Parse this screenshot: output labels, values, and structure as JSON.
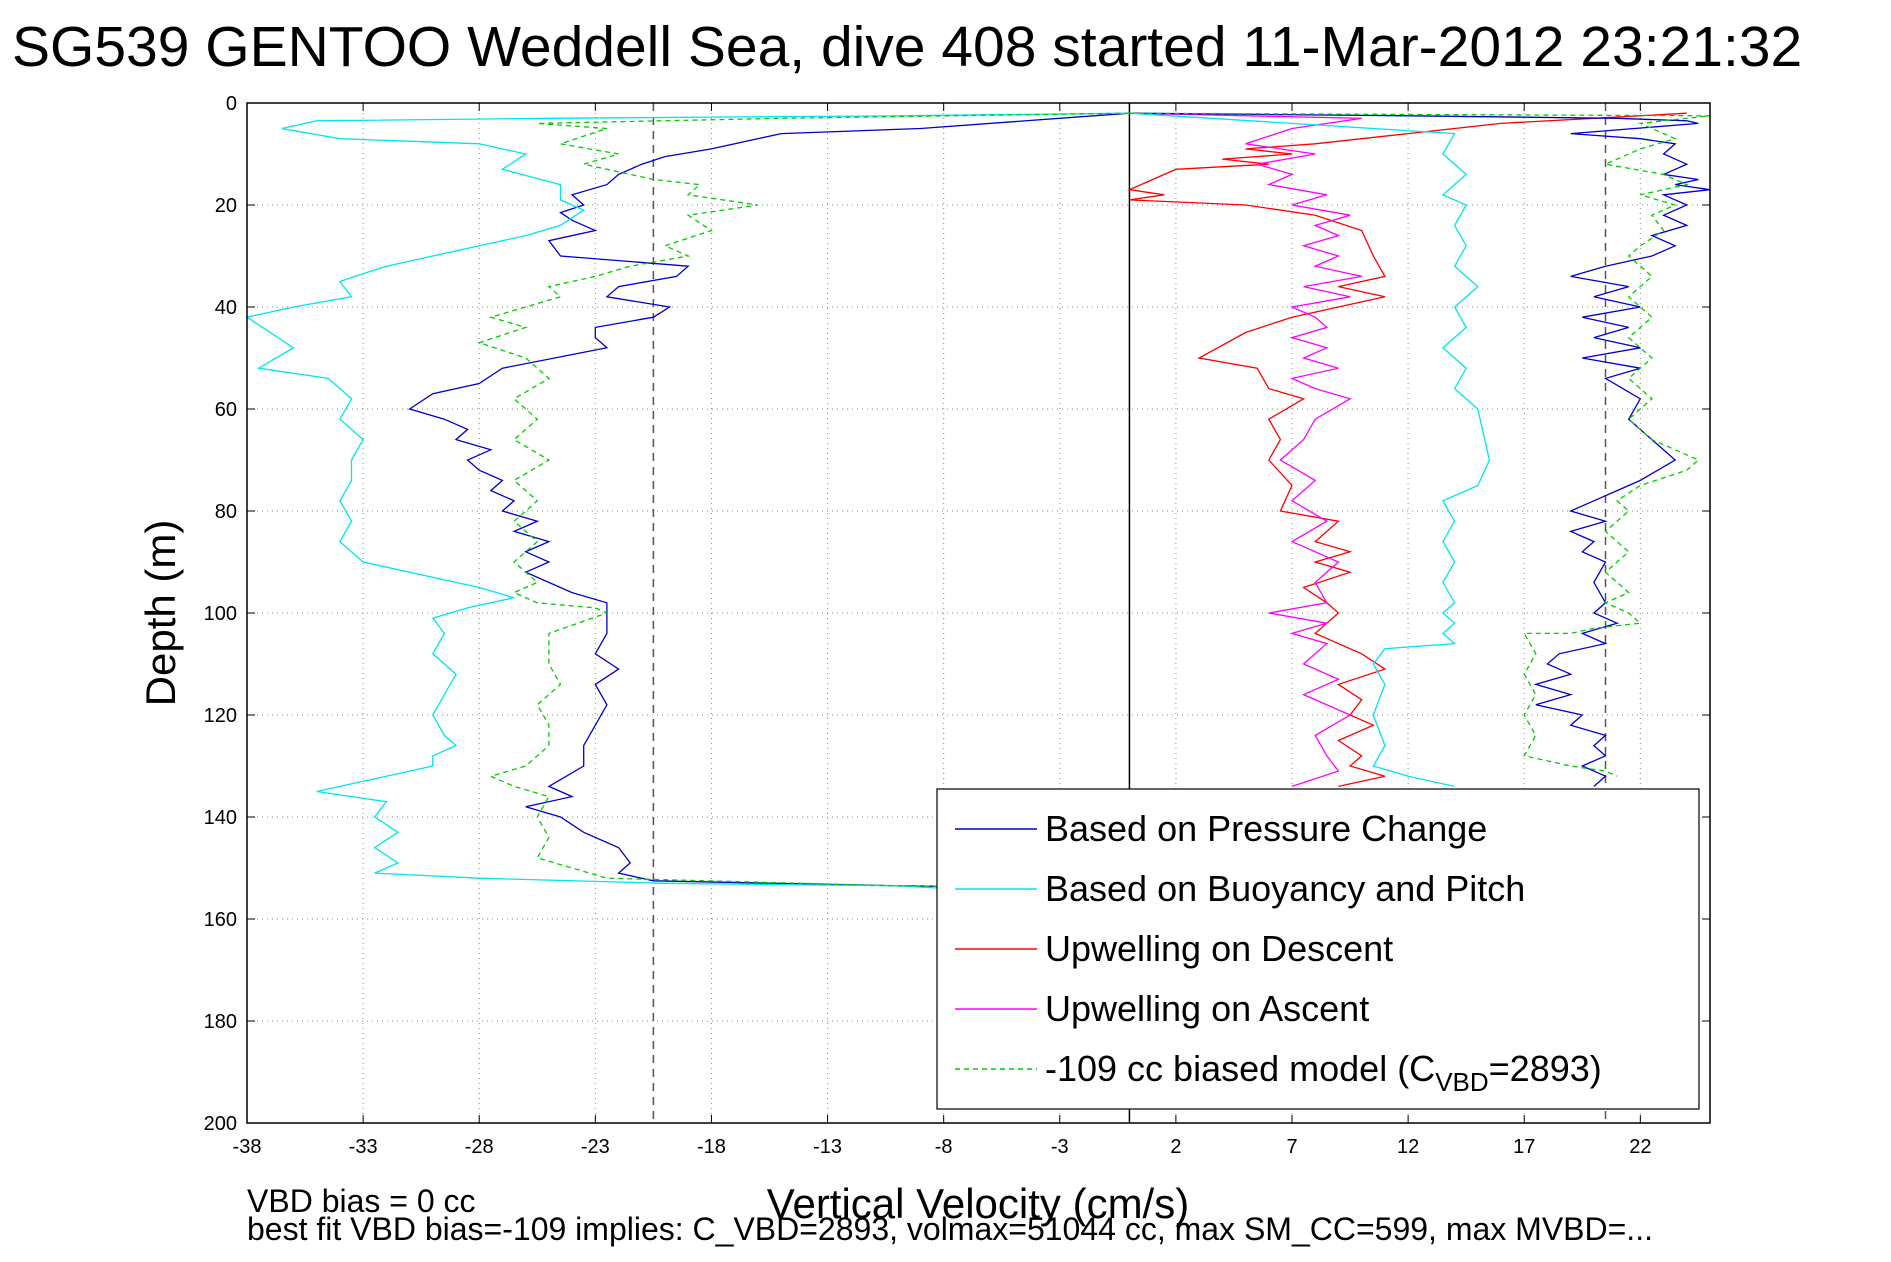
{
  "title": "SG539 GENTOO Weddell Sea, dive 408 started 11-Mar-2012 23:21:32",
  "footer": {
    "line1": "VBD bias = 0 cc",
    "line2": "best fit VBD bias=-109 implies: C_VBD=2893, volmax=51044 cc, max SM_CC=599, max MVBD=..."
  },
  "chart_data": {
    "type": "line",
    "title": "SG539 GENTOO Weddell Sea, dive 408 started 11-Mar-2012 23:21:32",
    "xlabel": "Vertical Velocity (cm/s)",
    "ylabel": "Depth (m)",
    "xlim": [
      -38,
      25
    ],
    "ylim": [
      200,
      0
    ],
    "y_reversed": true,
    "xticks": [
      -38,
      -33,
      -28,
      -23,
      -18,
      -13,
      -8,
      -3,
      2,
      7,
      12,
      17,
      22
    ],
    "yticks": [
      0,
      20,
      40,
      60,
      80,
      100,
      120,
      140,
      160,
      180,
      200
    ],
    "grid": true,
    "legend_position": "lower-right",
    "vertical_lines": [
      {
        "x": -20.5,
        "style": "dashed",
        "color": "#555555"
      },
      {
        "x": 0,
        "style": "solid",
        "color": "#000000"
      },
      {
        "x": 20.5,
        "style": "dashed",
        "color": "#555555"
      }
    ],
    "legend": [
      {
        "label": "Based on Pressure Change",
        "color": "#0000cc",
        "dash": false
      },
      {
        "label": "Based on Buoyancy and Pitch",
        "color": "#00e5ee",
        "dash": false
      },
      {
        "label": "Upwelling on Descent",
        "color": "#ff0000",
        "dash": false
      },
      {
        "label": "Upwelling on Ascent",
        "color": "#ff00ff",
        "dash": false
      },
      {
        "label": "-109 cc biased model (C",
        "label_sub": "VBD",
        "label_tail": "=2893)",
        "color": "#00cc00",
        "dash": true
      }
    ],
    "series": [
      {
        "name": "Based on Pressure Change",
        "color": "#0000cc",
        "dash": false,
        "x": [
          0,
          -9,
          -15,
          -18,
          -20,
          -21,
          -22,
          -22.5,
          -24,
          -23.5,
          -24.5,
          -24,
          -23,
          -25,
          -24.5,
          -19,
          -19.5,
          -22,
          -22.5,
          -19.8,
          -20.5,
          -23,
          -23,
          -22.5,
          -27,
          -28,
          -30,
          -31,
          -29.5,
          -28.5,
          -29,
          -27.5,
          -28.5,
          -28,
          -27,
          -27.5,
          -26.5,
          -27,
          -25.5,
          -26.5,
          -25,
          -26,
          -25,
          -26,
          -24,
          -22.5,
          -22.5,
          -23,
          -22,
          -23,
          -22.5,
          -23,
          -23.5,
          -23.5,
          -25,
          -24,
          -26,
          -24.5,
          -23.5,
          -22,
          -21.5,
          -22,
          -20.5,
          -10,
          0
        ],
        "y": [
          2,
          5,
          6,
          9,
          10.5,
          12,
          14,
          16,
          18,
          20,
          21.5,
          23,
          25,
          27,
          30,
          32,
          34,
          36,
          38,
          40,
          42,
          44,
          46,
          48,
          52,
          55,
          57,
          60,
          62,
          64,
          66,
          68,
          70,
          72,
          74,
          76,
          78,
          80,
          82,
          84,
          86,
          88,
          90,
          92,
          96,
          98,
          104,
          108,
          111,
          114,
          118,
          122,
          126,
          130,
          134,
          136,
          138,
          140,
          143,
          146,
          149,
          151,
          152.5,
          153.5,
          154
        ]
      },
      {
        "name": "Based on Buoyancy and Pitch",
        "color": "#00e5ee",
        "dash": false,
        "x": [
          0,
          -10,
          -25,
          -35,
          -36.5,
          -34,
          -28,
          -26,
          -27,
          -24.5,
          -24.5,
          -23.5,
          -24.5,
          -26,
          -28,
          -30,
          -32,
          -34,
          -33.5,
          -36,
          -38,
          -36,
          -37.5,
          -34.5,
          -33.5,
          -34,
          -33,
          -33.5,
          -33.5,
          -34,
          -33.5,
          -34,
          -33,
          -28,
          -26.5,
          -28.5,
          -30,
          -29.5,
          -30,
          -29,
          -29.5,
          -30,
          -29.5,
          -29,
          -30,
          -30,
          -31,
          -33,
          -35,
          -32,
          -32.5,
          -31.5,
          -32.5,
          -31.5,
          -32.5,
          -28,
          -20,
          -10,
          -8,
          0
        ],
        "y": [
          2,
          2.5,
          3,
          3.5,
          5,
          7,
          8,
          10,
          13,
          16,
          19,
          21,
          24,
          26,
          28,
          30,
          32,
          35,
          38,
          40,
          42,
          48,
          52,
          54,
          58,
          62,
          66,
          70,
          74,
          78,
          82,
          86,
          90,
          95,
          97,
          99,
          101,
          104,
          108,
          112,
          116,
          120,
          124,
          126,
          128,
          130,
          131,
          133,
          135,
          137,
          140,
          143,
          146,
          149,
          151,
          152,
          153,
          153.5,
          154,
          155
        ]
      },
      {
        "name": "Upwelling on Descent",
        "color": "#ff0000",
        "dash": false,
        "x": [
          24,
          20,
          16,
          12,
          8,
          5,
          7,
          4,
          6,
          2,
          1,
          0,
          1.5,
          0,
          5,
          8,
          10,
          10.5,
          11,
          9,
          11,
          9,
          7,
          5,
          3,
          5.5,
          6,
          7.5,
          6,
          6.5,
          6,
          7,
          6.5,
          9,
          8,
          9.5,
          8,
          9.5,
          7.5,
          8.5,
          9,
          8,
          10,
          11,
          9,
          10,
          9.5,
          10.5,
          9,
          10,
          9.5,
          11,
          9
        ],
        "y": [
          2,
          3,
          4,
          6,
          8,
          9,
          10,
          11,
          12,
          13,
          15,
          17,
          18,
          19,
          20,
          22,
          25,
          30,
          34,
          36,
          38,
          40,
          42,
          45,
          50,
          52,
          56,
          58,
          62,
          66,
          70,
          75,
          80,
          82,
          86,
          88,
          90,
          92,
          95,
          98,
          100,
          104,
          108,
          111,
          114,
          117,
          120,
          122,
          125,
          128,
          130,
          132,
          134
        ]
      },
      {
        "name": "Upwelling on Ascent",
        "color": "#ff00ff",
        "dash": false,
        "x": [
          0,
          10,
          7,
          5,
          8,
          5.5,
          7,
          6,
          8.5,
          7,
          9.5,
          8,
          9,
          7.5,
          9,
          8,
          10,
          7.5,
          9.5,
          7,
          8,
          8.5,
          7,
          8.5,
          7.5,
          9,
          7,
          8,
          9.5,
          8,
          7.5,
          6.5,
          8,
          7,
          8.5,
          7,
          9,
          8,
          8.5,
          6,
          8.5,
          7,
          8.5,
          7.5,
          9,
          7.5,
          9.5,
          8,
          8.5,
          9,
          7
        ],
        "y": [
          2,
          3,
          5,
          8,
          10,
          12,
          14,
          16,
          18,
          20,
          22,
          24,
          26,
          28,
          30,
          32,
          34,
          36,
          38,
          40,
          42,
          44,
          46,
          48,
          50,
          52,
          54,
          56,
          58,
          62,
          66,
          70,
          74,
          78,
          82,
          86,
          90,
          94,
          98,
          100,
          102,
          104,
          106,
          110,
          113,
          116,
          120,
          124,
          128,
          131,
          134
        ]
      },
      {
        "name": "-109 cc biased model (C_VBD=2893)",
        "color": "#00cc00",
        "dash": true,
        "x": [
          0,
          -15,
          -25.5,
          -22.5,
          -24.5,
          -22,
          -23.5,
          -21.5,
          -20.5,
          -18.5,
          -19,
          -16,
          -19,
          -18,
          -20,
          -19,
          -21.5,
          -23,
          -25,
          -24.5,
          -26,
          -27.5,
          -26,
          -28,
          -26,
          -25,
          -26.5,
          -25.5,
          -26.5,
          -25,
          -26.5,
          -25.5,
          -26.5,
          -25.5,
          -26.5,
          -25.5,
          -26.5,
          -25.5,
          -23,
          -22.5,
          -25,
          -25,
          -24.5,
          -25.5,
          -25,
          -25,
          -26,
          -27.5,
          -26.5,
          -25,
          -25.5,
          -25,
          -25.5,
          -22.5,
          -10,
          0
        ],
        "y": [
          2,
          3,
          4,
          5,
          8,
          10,
          12,
          14,
          15,
          16,
          18,
          20,
          22,
          25,
          28,
          30,
          32,
          34,
          36,
          38,
          40,
          42,
          44,
          47,
          50,
          54,
          58,
          62,
          66,
          70,
          74,
          78,
          82,
          86,
          90,
          94,
          96,
          98,
          99,
          100,
          104,
          110,
          114,
          118,
          122,
          126,
          130,
          132,
          134,
          136,
          140,
          144,
          148,
          152,
          153.5,
          154
        ]
      },
      {
        "name": "Based on Pressure Change (right)",
        "color": "#0000cc",
        "dash": false,
        "x": [
          0,
          12,
          21,
          24,
          24.5,
          19,
          22,
          23.5,
          23,
          24,
          23,
          24.5,
          23.5,
          25,
          23,
          24,
          23,
          24,
          22.5,
          23.5,
          22.5,
          20.5,
          19,
          21.5,
          20,
          22,
          19.5,
          21.5,
          20,
          22,
          19.5,
          22,
          20.5,
          22,
          21.5,
          22.5,
          23.5,
          22,
          21,
          20,
          19,
          20.5,
          19,
          20,
          19.5,
          20.5,
          20,
          20.5,
          20,
          21,
          19.5,
          20.5,
          18.5,
          18,
          19,
          17.5,
          19,
          17.5,
          19.5,
          19,
          20.5,
          20,
          20.5,
          19.5,
          20.5,
          20
        ],
        "y": [
          2,
          2.5,
          3,
          3.5,
          4,
          6,
          7,
          8,
          10,
          12,
          14,
          15,
          16,
          17,
          18,
          20,
          22,
          24,
          26,
          28,
          30,
          32,
          34,
          36,
          38,
          40,
          42,
          44,
          46,
          48,
          50,
          52,
          54,
          58,
          62,
          66,
          70,
          74,
          76,
          78,
          80,
          82,
          84,
          86,
          88,
          90,
          94,
          98,
          100,
          102,
          104,
          106,
          108,
          110,
          112,
          114,
          116,
          118,
          120,
          122,
          124,
          126,
          128,
          130,
          132,
          134
        ]
      },
      {
        "name": "Based on Buoyancy and Pitch (right)",
        "color": "#00e5ee",
        "dash": false,
        "x": [
          0,
          14,
          13.5,
          14.5,
          13.5,
          14.5,
          14,
          14.5,
          14,
          15,
          14,
          14.5,
          13.5,
          14.5,
          14,
          15,
          15.5,
          15,
          13.5,
          14,
          13.5,
          14,
          13.5,
          14,
          13.5,
          14,
          13.5,
          14,
          11,
          10.5,
          11,
          10.5,
          11,
          10.5,
          12,
          14
        ],
        "y": [
          2,
          6,
          10,
          14,
          18,
          20,
          24,
          28,
          32,
          36,
          40,
          44,
          48,
          52,
          56,
          60,
          70,
          75,
          78,
          82,
          86,
          90,
          94,
          98,
          100,
          102,
          104,
          106,
          107,
          110,
          114,
          120,
          126,
          130,
          132,
          134
        ]
      },
      {
        "name": "-109 cc biased model (right)",
        "color": "#00cc00",
        "dash": true,
        "x": [
          0,
          25,
          22,
          23.5,
          22,
          20.5,
          23,
          24,
          22,
          23.5,
          22.5,
          23,
          22,
          21.5,
          22.5,
          21.5,
          22.5,
          21.5,
          22.5,
          21.5,
          22.5,
          21.5,
          22.5,
          23.5,
          24.5,
          24,
          22,
          21,
          21.5,
          20.5,
          21.5,
          20.5,
          21.5,
          20.5,
          21.5,
          22,
          20,
          19,
          17,
          17.5,
          17,
          17.5,
          17,
          17.5,
          17,
          19,
          20.5,
          21
        ],
        "y": [
          2,
          2.5,
          4,
          7,
          9,
          12,
          14,
          16,
          18,
          20,
          22,
          25,
          28,
          30,
          34,
          38,
          42,
          46,
          50,
          54,
          58,
          62,
          66,
          68,
          70,
          72,
          75,
          78,
          80,
          84,
          88,
          92,
          96,
          98,
          100,
          102,
          103,
          104,
          104,
          108,
          112,
          116,
          120,
          124,
          128,
          130,
          131,
          132
        ]
      }
    ]
  }
}
